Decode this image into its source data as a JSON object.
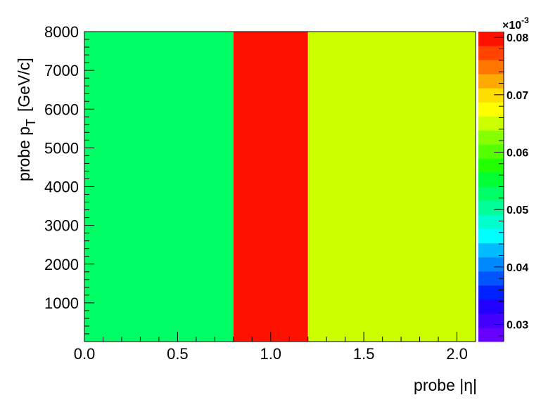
{
  "chart_data": {
    "type": "heatmap",
    "title": "",
    "xlabel": "probe |η|",
    "ylabel_main": "probe p",
    "ylabel_sub": "T",
    "ylabel_unit": "[GeV/c]",
    "xlim": [
      0.0,
      2.1
    ],
    "ylim": [
      0,
      8000
    ],
    "x_ticks": [
      "0.0",
      "0.5",
      "1.0",
      "1.5",
      "2.0"
    ],
    "y_ticks": [
      "1000",
      "2000",
      "3000",
      "4000",
      "5000",
      "6000",
      "7000",
      "8000"
    ],
    "x_bin_edges": [
      0.0,
      0.8,
      1.2,
      2.1
    ],
    "y_bin_edges": [
      0,
      8000
    ],
    "z_values": [
      [
        0.053,
        0.08,
        0.066
      ]
    ],
    "zlim": [
      0.027,
      0.081
    ],
    "z_exponent_label": "×10",
    "z_exponent_power": "-3",
    "z_ticks": [
      "0.03",
      "0.04",
      "0.05",
      "0.06",
      "0.07",
      "0.08"
    ],
    "palette": [
      "#6600ff",
      "#4400ff",
      "#2200ff",
      "#0022ff",
      "#0055ff",
      "#0088ff",
      "#00bbff",
      "#00ffff",
      "#00ffcc",
      "#00ff99",
      "#00ff66",
      "#00ff33",
      "#22ff00",
      "#55ff00",
      "#88ff00",
      "#ccff00",
      "#ffff00",
      "#ffdd00",
      "#ffaa00",
      "#ff7700",
      "#ff4400",
      "#ff1100"
    ],
    "grid": false,
    "legend": "colorbar-right"
  }
}
